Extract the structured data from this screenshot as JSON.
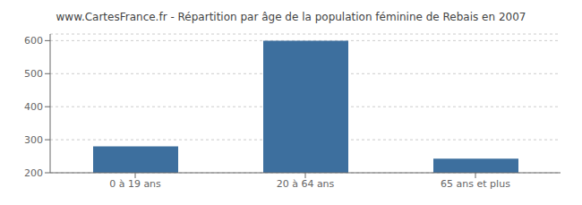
{
  "chart_data": {
    "type": "bar",
    "title": "www.CartesFrance.fr - Répartition par âge de la population féminine de Rebais en 2007",
    "categories": [
      "0 à 19 ans",
      "20 à 64 ans",
      "65 ans et plus"
    ],
    "values": [
      280,
      600,
      243
    ],
    "color": "#3d6f9e",
    "ylim": [
      200,
      620
    ],
    "yticks": [
      200,
      300,
      400,
      500,
      600
    ],
    "grid": true
  }
}
